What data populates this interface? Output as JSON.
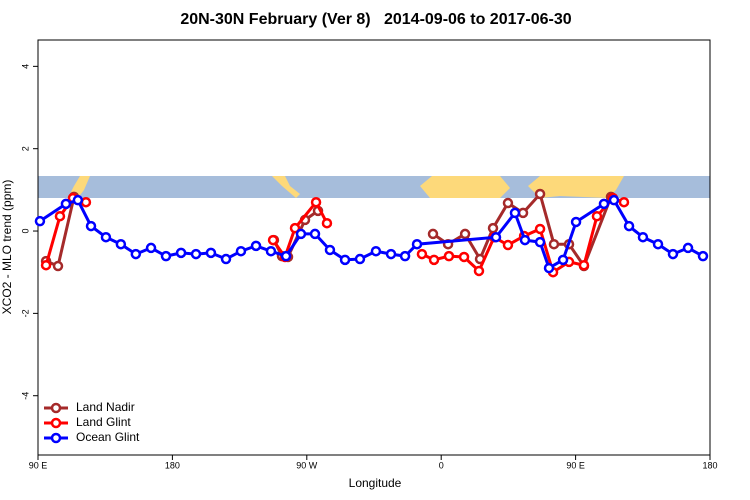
{
  "chart_data": {
    "type": "line",
    "title": "20N-30N February (Ver 8)   2014-09-06 to 2017-06-30",
    "x_label": "Longitude",
    "y_label": "XCO2 - MLO trend (ppm)",
    "xlim": [
      90,
      540
    ],
    "ylim": [
      -5.44,
      4.64
    ],
    "xticks": [
      {
        "value": 90,
        "label": "90 E"
      },
      180,
      {
        "value": 270,
        "label": "90 W"
      },
      {
        "value": 360,
        "label": "0"
      },
      {
        "value": 450,
        "label": "90 E"
      },
      {
        "value": 540,
        "label": "180"
      }
    ],
    "yticks": [
      -4,
      -2,
      0,
      2,
      4
    ],
    "legend": "bottom-left",
    "series": [
      {
        "name": "Land Nadir",
        "color": "#a52a2a",
        "x": [
          95.4,
          103.4,
          114.1,
          null,
          248.0,
          253.4,
          257.4,
          268.8,
          277.5,
          null,
          354.5,
          364.6,
          376.0,
          386.0,
          394.7,
          404.7,
          414.8,
          426.2,
          435.5,
          445.6,
          455.6,
          473.7
        ],
        "values": [
          -0.73,
          -0.85,
          0.83,
          null,
          -0.22,
          -0.61,
          -0.63,
          0.27,
          0.49,
          null,
          -0.07,
          -0.32,
          -0.07,
          -0.68,
          0.07,
          0.68,
          0.44,
          0.9,
          -0.32,
          -0.32,
          -0.85,
          0.83
        ]
      },
      {
        "name": "Land Glint",
        "color": "#ff0000",
        "x": [
          95.4,
          104.7,
          113.4,
          122.1,
          null,
          247.4,
          255.4,
          262.1,
          276.2,
          283.5,
          null,
          347.1,
          355.2,
          365.2,
          375.3,
          385.3,
          395.4,
          404.7,
          415.5,
          426.2,
          434.9,
          445.6,
          455.6,
          464.3,
          475.0,
          482.4
        ],
        "values": [
          -0.83,
          0.36,
          0.8,
          0.7,
          null,
          -0.22,
          -0.63,
          0.07,
          0.7,
          0.19,
          null,
          -0.56,
          -0.7,
          -0.61,
          -0.63,
          -0.97,
          -0.15,
          -0.34,
          -0.12,
          0.05,
          -1.0,
          -0.75,
          -0.83,
          0.36,
          0.8,
          0.7
        ]
      },
      {
        "name": "Ocean Glint",
        "color": "#0000ff",
        "x": [
          91.3,
          108.7,
          116.7,
          125.5,
          135.5,
          145.5,
          155.5,
          165.7,
          175.7,
          185.8,
          195.8,
          205.8,
          215.9,
          225.9,
          236.0,
          246.0,
          256.1,
          266.1,
          275.5,
          285.5,
          295.6,
          305.6,
          316.3,
          326.4,
          335.8,
          343.8,
          396.7,
          409.4,
          416.1,
          426.2,
          432.2,
          441.6,
          450.3,
          469.0,
          475.7,
          485.8,
          495.1,
          505.2,
          515.2,
          525.3,
          535.3
        ],
        "values": [
          0.24,
          0.66,
          0.75,
          0.12,
          -0.15,
          -0.32,
          -0.56,
          -0.41,
          -0.61,
          -0.53,
          -0.56,
          -0.53,
          -0.68,
          -0.49,
          -0.36,
          -0.49,
          -0.61,
          -0.07,
          -0.07,
          -0.46,
          -0.7,
          -0.68,
          -0.49,
          -0.56,
          -0.61,
          -0.32,
          -0.15,
          0.44,
          -0.22,
          -0.27,
          -0.9,
          -0.7,
          0.22,
          0.66,
          0.75,
          0.12,
          -0.15,
          -0.32,
          -0.56,
          -0.41,
          -0.61
        ]
      }
    ]
  }
}
